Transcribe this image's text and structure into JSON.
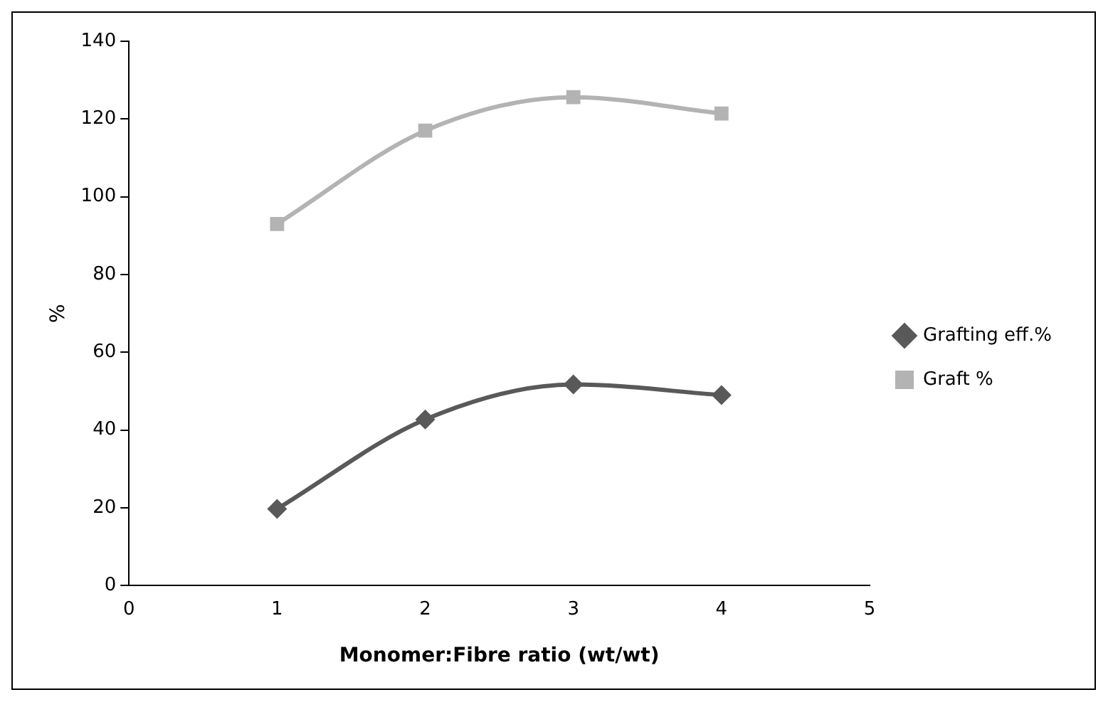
{
  "chart_data": {
    "type": "line",
    "xlabel": "Monomer:Fibre ratio (wt/wt)",
    "ylabel": "%",
    "xlim": [
      0,
      5
    ],
    "xticks": [
      0,
      1,
      2,
      3,
      4,
      5
    ],
    "ylim": [
      0,
      140
    ],
    "yticks": [
      0,
      20,
      40,
      60,
      80,
      100,
      120,
      140
    ],
    "x": [
      1,
      2,
      3,
      4
    ],
    "series": [
      {
        "name": "Grafting eff.%",
        "color": "#595959",
        "marker": "diamond",
        "values": [
          19.7,
          42.7,
          51.7,
          49
        ]
      },
      {
        "name": "Graft %",
        "color": "#b3b3b3",
        "marker": "square",
        "values": [
          93,
          117,
          125.6,
          121.4
        ]
      }
    ],
    "grid": false,
    "legend": "right",
    "line_style": "solid"
  }
}
